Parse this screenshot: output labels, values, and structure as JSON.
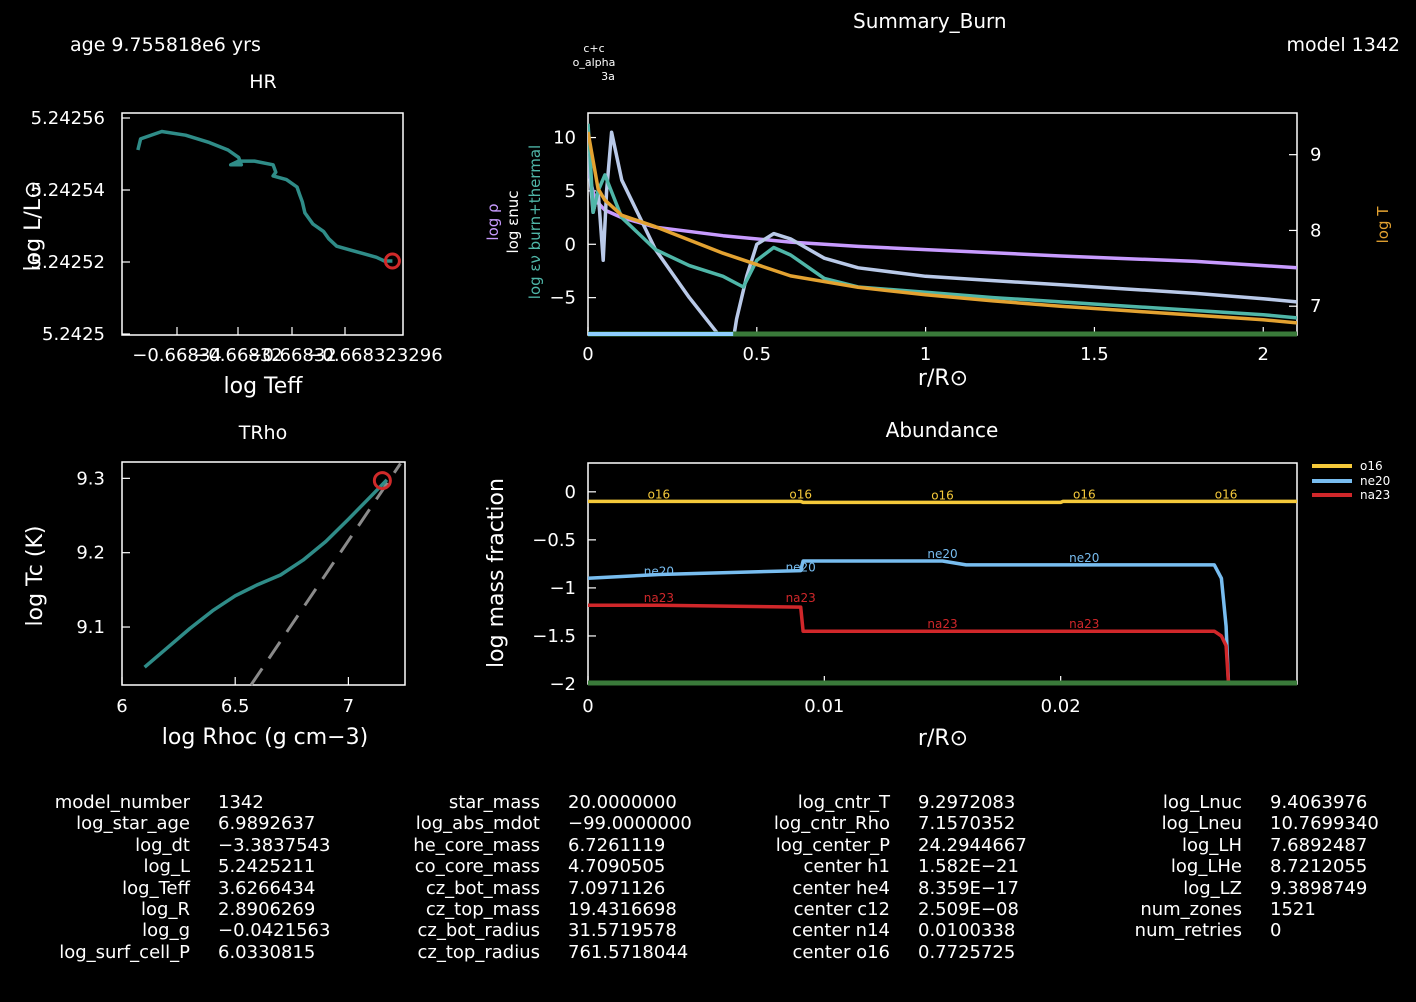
{
  "header": {
    "age_label": "age 9.755818e6 yrs",
    "title": "Summary_Burn",
    "model_label": "model 1342"
  },
  "colors": {
    "track": "#2f8c88",
    "marker": "#d02a2a",
    "dashed": "#8a8a8a",
    "rho": "#c89bff",
    "enuc": "#b9c9e8",
    "eps_grav": "#4fb6a8",
    "logT": "#e3a231",
    "o16": "#f5c93a",
    "ne20": "#78bdf0",
    "na23": "#d0272a",
    "baseline": "#3a7a3a"
  },
  "chart_data": [
    {
      "id": "hr",
      "type": "line",
      "title": "HR",
      "xlabel": "log Teff",
      "ylabel": "log L/L⊙",
      "xticks": [
        "−0.66834",
        "−0.66832",
        "−0.66832",
        "−0.668323296"
      ],
      "yticks": [
        "5.24256",
        "5.24254",
        "5.24252",
        "5.2425"
      ],
      "ylim": [
        5.2425,
        5.24256
      ],
      "x": [
        0,
        0.01,
        0.09,
        0.18,
        0.27,
        0.34,
        0.38,
        0.39,
        0.35,
        0.38,
        0.44,
        0.51,
        0.52,
        0.51,
        0.56,
        0.6,
        0.61,
        0.62,
        0.63,
        0.66,
        0.7,
        0.72,
        0.75,
        0.8,
        0.85,
        0.9,
        0.93,
        0.95,
        0.96
      ],
      "y": [
        5.24255,
        5.242553,
        5.242555,
        5.242554,
        5.242552,
        5.24255,
        5.242548,
        5.242546,
        5.242546,
        5.242547,
        5.242547,
        5.242546,
        5.242544,
        5.242543,
        5.242542,
        5.24254,
        5.242538,
        5.242536,
        5.242533,
        5.24253,
        5.242528,
        5.242526,
        5.242524,
        5.242523,
        5.242522,
        5.242521,
        5.24252,
        5.24252,
        5.24252
      ],
      "current": {
        "x": 0.96,
        "y": 5.24252
      }
    },
    {
      "id": "trho",
      "type": "line",
      "title": "TRho",
      "xlabel": "log Rhoc (g cm−3)",
      "ylabel": "log Tc (K)",
      "xticks": [
        "6",
        "6.5",
        "7"
      ],
      "yticks": [
        "9.3",
        "9.2",
        "9.1"
      ],
      "xlim": [
        6,
        7.25
      ],
      "ylim": [
        9.022,
        9.322
      ],
      "x": [
        6.1,
        6.2,
        6.3,
        6.4,
        6.5,
        6.6,
        6.7,
        6.8,
        6.9,
        7.0,
        7.1,
        7.17
      ],
      "y": [
        9.046,
        9.072,
        9.098,
        9.122,
        9.142,
        9.157,
        9.17,
        9.19,
        9.215,
        9.245,
        9.276,
        9.298
      ],
      "current": {
        "x": 7.15,
        "y": 9.297
      },
      "dashed_x": [
        6.57,
        7.23
      ],
      "dashed_y": [
        9.022,
        9.32
      ]
    },
    {
      "id": "burn",
      "type": "line",
      "title": "Summary_Burn",
      "xlabel": "r/R⊙",
      "left_axis_labels": [
        "log ρ",
        "log εnuc",
        "log εν burn+thermal"
      ],
      "right_axis_label": "log T",
      "burn_labels": [
        "c+c",
        "o_alpha",
        "3a"
      ],
      "xticks": [
        "0",
        "0.5",
        "1",
        "1.5",
        "2"
      ],
      "yticks": [
        "10",
        "5",
        "0",
        "−5"
      ],
      "rticks": [
        "9",
        "8",
        "7"
      ],
      "xlim": [
        0,
        2.1
      ],
      "ylim": [
        -8.5,
        12.3
      ],
      "series": [
        {
          "name": "log ρ",
          "color_key": "rho",
          "x": [
            0,
            0.02,
            0.05,
            0.1,
            0.2,
            0.4,
            0.6,
            0.8,
            1.0,
            1.2,
            1.4,
            1.6,
            1.8,
            2.0,
            2.1
          ],
          "y": [
            7,
            4.2,
            3.2,
            2.5,
            1.6,
            0.8,
            0.2,
            -0.2,
            -0.5,
            -0.8,
            -1.1,
            -1.35,
            -1.6,
            -2.0,
            -2.2
          ]
        },
        {
          "name": "log εnuc",
          "color_key": "enuc",
          "x": [
            0,
            0.015,
            0.03,
            0.045,
            0.055,
            0.07,
            0.1,
            0.2,
            0.3,
            0.4,
            0.43,
            0.44,
            0.47,
            0.5,
            0.55,
            0.6,
            0.7,
            0.8,
            1.0,
            1.2,
            1.4,
            1.6,
            1.8,
            2.0,
            2.1
          ],
          "y": [
            8.5,
            3,
            5,
            -1.5,
            5,
            10.5,
            6,
            -0.5,
            -5,
            -9,
            -9,
            -7,
            -3,
            0,
            1,
            0.5,
            -1.3,
            -2.2,
            -3,
            -3.4,
            -3.8,
            -4.2,
            -4.6,
            -5.1,
            -5.4
          ]
        },
        {
          "name": "log εν burn+thermal",
          "color_key": "eps_grav",
          "x": [
            0,
            0.005,
            0.015,
            0.03,
            0.05,
            0.1,
            0.2,
            0.3,
            0.4,
            0.46,
            0.5,
            0.55,
            0.6,
            0.7,
            0.8,
            1.0,
            1.2,
            1.4,
            1.6,
            1.8,
            2.0,
            2.1
          ],
          "y": [
            11.3,
            9,
            3,
            5,
            6.5,
            2.5,
            -0.5,
            -2,
            -3,
            -4,
            -1.5,
            -0.3,
            -1,
            -3.2,
            -4,
            -4.5,
            -5,
            -5.4,
            -5.8,
            -6.2,
            -6.6,
            -6.9
          ]
        },
        {
          "name": "log T",
          "color_key": "logT",
          "axis": "right",
          "x": [
            0,
            0.03,
            0.05,
            0.1,
            0.2,
            0.4,
            0.6,
            0.8,
            1.0,
            1.2,
            1.4,
            1.6,
            1.8,
            2.0,
            2.1
          ],
          "y": [
            9.3,
            8.55,
            8.4,
            8.2,
            8.05,
            7.7,
            7.4,
            7.25,
            7.15,
            7.07,
            7.0,
            6.94,
            6.88,
            6.82,
            6.78
          ]
        }
      ]
    },
    {
      "id": "abund",
      "type": "line",
      "title": "Abundance",
      "xlabel": "r/R⊙",
      "ylabel": "log mass fraction",
      "xticks": [
        "0",
        "0.01",
        "0.02"
      ],
      "yticks": [
        "0",
        "−0.5",
        "−1",
        "−1.5",
        "−2"
      ],
      "xlim": [
        0,
        0.03
      ],
      "ylim": [
        -2,
        0.3
      ],
      "legend": [
        "o16",
        "ne20",
        "na23"
      ],
      "legend_position": "right",
      "series": [
        {
          "name": "o16",
          "color_key": "o16",
          "x": [
            0,
            0.009,
            0.0091,
            0.02,
            0.0201,
            0.03
          ],
          "y": [
            -0.1,
            -0.1,
            -0.11,
            -0.11,
            -0.1,
            -0.1
          ],
          "labels_x": [
            0.003,
            0.009,
            0.015,
            0.021,
            0.027
          ]
        },
        {
          "name": "ne20",
          "color_key": "ne20",
          "x": [
            0,
            0.003,
            0.009,
            0.0091,
            0.015,
            0.016,
            0.0265,
            0.0268,
            0.027,
            0.0271
          ],
          "y": [
            -0.9,
            -0.86,
            -0.82,
            -0.72,
            -0.72,
            -0.76,
            -0.76,
            -0.9,
            -1.4,
            -2.0
          ],
          "labels_x": [
            0.003,
            0.009,
            0.015,
            0.021
          ]
        },
        {
          "name": "na23",
          "color_key": "na23",
          "x": [
            0,
            0.003,
            0.009,
            0.0091,
            0.0265,
            0.0268,
            0.027,
            0.0271
          ],
          "y": [
            -1.18,
            -1.18,
            -1.2,
            -1.45,
            -1.45,
            -1.5,
            -1.6,
            -2.0
          ],
          "labels_x": [
            0.003,
            0.009,
            0.015,
            0.021
          ]
        }
      ]
    }
  ],
  "stats": [
    {
      "rows": [
        [
          "model_number",
          "1342"
        ],
        [
          "log_star_age",
          "6.9892637"
        ],
        [
          "log_dt",
          "−3.3837543"
        ],
        [
          "log_L",
          "5.2425211"
        ],
        [
          "log_Teff",
          "3.6266434"
        ],
        [
          "log_R",
          "2.8906269"
        ],
        [
          "log_g",
          "−0.0421563"
        ],
        [
          "log_surf_cell_P",
          "6.0330815"
        ]
      ]
    },
    {
      "rows": [
        [
          "star_mass",
          "20.0000000"
        ],
        [
          "log_abs_mdot",
          "−99.0000000"
        ],
        [
          "he_core_mass",
          "6.7261119"
        ],
        [
          "co_core_mass",
          "4.7090505"
        ],
        [
          "cz_bot_mass",
          "7.0971126"
        ],
        [
          "cz_top_mass",
          "19.4316698"
        ],
        [
          "cz_bot_radius",
          "31.5719578"
        ],
        [
          "cz_top_radius",
          "761.5718044"
        ]
      ]
    },
    {
      "rows": [
        [
          "log_cntr_T",
          "9.2972083"
        ],
        [
          "log_cntr_Rho",
          "7.1570352"
        ],
        [
          "log_center_P",
          "24.2944667"
        ],
        [
          "center h1",
          "1.582E−21"
        ],
        [
          "center he4",
          "8.359E−17"
        ],
        [
          "center c12",
          "2.509E−08"
        ],
        [
          "center n14",
          "0.0100338"
        ],
        [
          "center o16",
          "0.7725725"
        ]
      ]
    },
    {
      "rows": [
        [
          "log_Lnuc",
          "9.4063976"
        ],
        [
          "log_Lneu",
          "10.7699340"
        ],
        [
          "log_LH",
          "7.6892487"
        ],
        [
          "log_LHe",
          "8.7212055"
        ],
        [
          "log_LZ",
          "9.3898749"
        ],
        [
          "num_zones",
          "1521"
        ],
        [
          "num_retries",
          "0"
        ]
      ]
    }
  ]
}
